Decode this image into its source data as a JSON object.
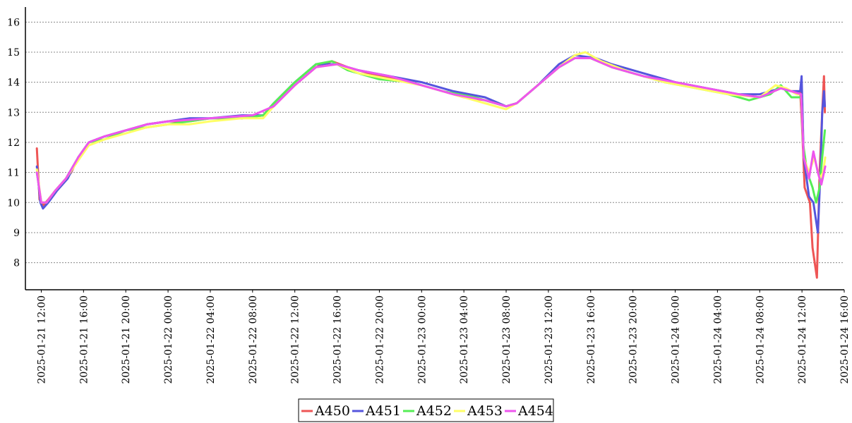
{
  "chart_data": {
    "type": "line",
    "title": "",
    "xlabel": "",
    "ylabel": "",
    "grid": {
      "y": true,
      "x": false,
      "style": "dotted"
    },
    "legend_position": "bottom-center",
    "ylim": [
      7.1,
      16.5
    ],
    "xlim": [
      "2025-01-21 10:30",
      "2025-01-24 16:00"
    ],
    "y_ticks": [
      8,
      9,
      10,
      11,
      12,
      13,
      14,
      15,
      16
    ],
    "x_ticks": [
      "2025-01-21 12:00",
      "2025-01-21 16:00",
      "2025-01-21 20:00",
      "2025-01-22 00:00",
      "2025-01-22 04:00",
      "2025-01-22 08:00",
      "2025-01-22 12:00",
      "2025-01-22 16:00",
      "2025-01-22 20:00",
      "2025-01-23 00:00",
      "2025-01-23 04:00",
      "2025-01-23 08:00",
      "2025-01-23 12:00",
      "2025-01-23 16:00",
      "2025-01-23 20:00",
      "2025-01-24 00:00",
      "2025-01-24 04:00",
      "2025-01-24 08:00",
      "2025-01-24 12:00",
      "2025-01-24 16:00"
    ],
    "series": [
      {
        "name": "A450",
        "color": "#ee5555",
        "points": [
          [
            "2025-01-21 11:35",
            11.8
          ],
          [
            "2025-01-21 11:50",
            10.1
          ],
          [
            "2025-01-21 12:10",
            9.9
          ],
          [
            "2025-01-21 12:40",
            10.1
          ],
          [
            "2025-01-21 13:20",
            10.4
          ],
          [
            "2025-01-21 14:10",
            10.7
          ],
          [
            "2025-01-21 14:50",
            11.0
          ],
          [
            "2025-01-21 15:30",
            11.5
          ],
          [
            "2025-01-21 16:30",
            12.0
          ],
          [
            "2025-01-21 18:00",
            12.2
          ],
          [
            "2025-01-21 20:00",
            12.4
          ],
          [
            "2025-01-21 22:00",
            12.6
          ],
          [
            "2025-01-22 00:00",
            12.7
          ],
          [
            "2025-01-22 02:00",
            12.7
          ],
          [
            "2025-01-22 04:00",
            12.8
          ],
          [
            "2025-01-22 07:00",
            12.8
          ],
          [
            "2025-01-22 09:00",
            12.9
          ],
          [
            "2025-01-22 10:00",
            13.2
          ],
          [
            "2025-01-22 12:00",
            13.9
          ],
          [
            "2025-01-22 14:00",
            14.5
          ],
          [
            "2025-01-22 15:30",
            14.7
          ],
          [
            "2025-01-22 17:00",
            14.5
          ],
          [
            "2025-01-22 19:00",
            14.3
          ],
          [
            "2025-01-22 22:00",
            14.1
          ],
          [
            "2025-01-23 01:00",
            13.8
          ],
          [
            "2025-01-23 04:00",
            13.5
          ],
          [
            "2025-01-23 06:00",
            13.4
          ],
          [
            "2025-01-23 08:00",
            13.2
          ],
          [
            "2025-01-23 09:00",
            13.3
          ],
          [
            "2025-01-23 11:00",
            13.9
          ],
          [
            "2025-01-23 13:00",
            14.5
          ],
          [
            "2025-01-23 14:30",
            14.8
          ],
          [
            "2025-01-23 16:00",
            14.8
          ],
          [
            "2025-01-23 18:00",
            14.5
          ],
          [
            "2025-01-23 21:00",
            14.2
          ],
          [
            "2025-01-24 00:00",
            14.0
          ],
          [
            "2025-01-24 03:00",
            13.8
          ],
          [
            "2025-01-24 06:00",
            13.6
          ],
          [
            "2025-01-24 08:00",
            13.5
          ],
          [
            "2025-01-24 10:00",
            13.8
          ],
          [
            "2025-01-24 11:00",
            13.7
          ],
          [
            "2025-01-24 11:50",
            13.7
          ],
          [
            "2025-01-24 12:00",
            12.6
          ],
          [
            "2025-01-24 12:15",
            10.5
          ],
          [
            "2025-01-24 12:45",
            10.0
          ],
          [
            "2025-01-24 13:00",
            8.5
          ],
          [
            "2025-01-24 13:25",
            7.5
          ],
          [
            "2025-01-24 13:40",
            11.0
          ],
          [
            "2025-01-24 13:55",
            13.0
          ],
          [
            "2025-01-24 14:05",
            14.2
          ],
          [
            "2025-01-24 14:10",
            13.0
          ]
        ]
      },
      {
        "name": "A451",
        "color": "#5555dd",
        "points": [
          [
            "2025-01-21 11:35",
            11.2
          ],
          [
            "2025-01-21 11:55",
            10.0
          ],
          [
            "2025-01-21 12:10",
            9.8
          ],
          [
            "2025-01-21 12:40",
            10.0
          ],
          [
            "2025-01-21 13:30",
            10.4
          ],
          [
            "2025-01-21 14:30",
            10.8
          ],
          [
            "2025-01-21 15:30",
            11.5
          ],
          [
            "2025-01-21 16:30",
            12.0
          ],
          [
            "2025-01-21 18:00",
            12.2
          ],
          [
            "2025-01-21 20:00",
            12.4
          ],
          [
            "2025-01-21 22:00",
            12.6
          ],
          [
            "2025-01-22 00:00",
            12.7
          ],
          [
            "2025-01-22 02:00",
            12.8
          ],
          [
            "2025-01-22 04:00",
            12.8
          ],
          [
            "2025-01-22 07:00",
            12.9
          ],
          [
            "2025-01-22 09:00",
            12.9
          ],
          [
            "2025-01-22 10:00",
            13.3
          ],
          [
            "2025-01-22 12:00",
            14.0
          ],
          [
            "2025-01-22 14:00",
            14.6
          ],
          [
            "2025-01-22 16:00",
            14.6
          ],
          [
            "2025-01-22 18:00",
            14.4
          ],
          [
            "2025-01-22 21:00",
            14.2
          ],
          [
            "2025-01-23 00:00",
            14.0
          ],
          [
            "2025-01-23 03:00",
            13.7
          ],
          [
            "2025-01-23 06:00",
            13.5
          ],
          [
            "2025-01-23 08:00",
            13.2
          ],
          [
            "2025-01-23 09:00",
            13.3
          ],
          [
            "2025-01-23 11:00",
            13.9
          ],
          [
            "2025-01-23 13:00",
            14.6
          ],
          [
            "2025-01-23 14:30",
            14.9
          ],
          [
            "2025-01-23 16:30",
            14.8
          ],
          [
            "2025-01-23 18:00",
            14.6
          ],
          [
            "2025-01-23 21:00",
            14.3
          ],
          [
            "2025-01-24 00:00",
            14.0
          ],
          [
            "2025-01-24 03:00",
            13.8
          ],
          [
            "2025-01-24 06:00",
            13.6
          ],
          [
            "2025-01-24 08:00",
            13.6
          ],
          [
            "2025-01-24 10:00",
            13.8
          ],
          [
            "2025-01-24 11:00",
            13.7
          ],
          [
            "2025-01-24 11:50",
            13.7
          ],
          [
            "2025-01-24 11:58",
            14.2
          ],
          [
            "2025-01-24 12:10",
            11.5
          ],
          [
            "2025-01-24 12:40",
            10.2
          ],
          [
            "2025-01-24 13:05",
            10.0
          ],
          [
            "2025-01-24 13:30",
            9.0
          ],
          [
            "2025-01-24 13:45",
            11.0
          ],
          [
            "2025-01-24 13:55",
            13.0
          ],
          [
            "2025-01-24 14:05",
            13.7
          ],
          [
            "2025-01-24 14:10",
            13.2
          ]
        ]
      },
      {
        "name": "A452",
        "color": "#55ee55",
        "points": [
          [
            "2025-01-21 11:35",
            11.0
          ],
          [
            "2025-01-21 12:00",
            10.0
          ],
          [
            "2025-01-21 12:30",
            10.0
          ],
          [
            "2025-01-21 13:20",
            10.4
          ],
          [
            "2025-01-21 14:20",
            10.8
          ],
          [
            "2025-01-21 15:30",
            11.5
          ],
          [
            "2025-01-21 16:30",
            12.0
          ],
          [
            "2025-01-21 18:00",
            12.1
          ],
          [
            "2025-01-21 20:00",
            12.4
          ],
          [
            "2025-01-21 22:00",
            12.5
          ],
          [
            "2025-01-22 00:00",
            12.6
          ],
          [
            "2025-01-22 02:00",
            12.7
          ],
          [
            "2025-01-22 04:00",
            12.8
          ],
          [
            "2025-01-22 07:00",
            12.8
          ],
          [
            "2025-01-22 09:00",
            12.9
          ],
          [
            "2025-01-22 10:00",
            13.3
          ],
          [
            "2025-01-22 12:00",
            14.0
          ],
          [
            "2025-01-22 14:00",
            14.6
          ],
          [
            "2025-01-22 15:30",
            14.7
          ],
          [
            "2025-01-22 17:00",
            14.4
          ],
          [
            "2025-01-22 20:00",
            14.1
          ],
          [
            "2025-01-22 23:00",
            14.0
          ],
          [
            "2025-01-23 02:00",
            13.7
          ],
          [
            "2025-01-23 05:00",
            13.5
          ],
          [
            "2025-01-23 07:00",
            13.3
          ],
          [
            "2025-01-23 08:00",
            13.2
          ],
          [
            "2025-01-23 09:00",
            13.3
          ],
          [
            "2025-01-23 11:00",
            13.9
          ],
          [
            "2025-01-23 13:00",
            14.5
          ],
          [
            "2025-01-23 14:30",
            14.8
          ],
          [
            "2025-01-23 16:00",
            14.8
          ],
          [
            "2025-01-23 18:00",
            14.5
          ],
          [
            "2025-01-23 20:00",
            14.3
          ],
          [
            "2025-01-23 23:00",
            14.0
          ],
          [
            "2025-01-24 02:00",
            13.8
          ],
          [
            "2025-01-24 05:00",
            13.6
          ],
          [
            "2025-01-24 07:00",
            13.4
          ],
          [
            "2025-01-24 09:00",
            13.6
          ],
          [
            "2025-01-24 10:00",
            13.9
          ],
          [
            "2025-01-24 11:00",
            13.5
          ],
          [
            "2025-01-24 11:55",
            13.5
          ],
          [
            "2025-01-24 12:05",
            12.0
          ],
          [
            "2025-01-24 12:30",
            11.0
          ],
          [
            "2025-01-24 13:00",
            10.5
          ],
          [
            "2025-01-24 13:20",
            10.0
          ],
          [
            "2025-01-24 13:40",
            10.5
          ],
          [
            "2025-01-24 13:55",
            11.5
          ],
          [
            "2025-01-24 14:10",
            12.4
          ]
        ]
      },
      {
        "name": "A453",
        "color": "#ffff66",
        "points": [
          [
            "2025-01-21 11:35",
            11.1
          ],
          [
            "2025-01-21 12:00",
            10.0
          ],
          [
            "2025-01-21 12:30",
            10.0
          ],
          [
            "2025-01-21 13:20",
            10.4
          ],
          [
            "2025-01-21 14:20",
            10.8
          ],
          [
            "2025-01-21 15:30",
            11.4
          ],
          [
            "2025-01-21 16:30",
            11.9
          ],
          [
            "2025-01-21 18:00",
            12.1
          ],
          [
            "2025-01-21 20:00",
            12.3
          ],
          [
            "2025-01-21 22:00",
            12.5
          ],
          [
            "2025-01-22 00:00",
            12.6
          ],
          [
            "2025-01-22 02:00",
            12.6
          ],
          [
            "2025-01-22 04:00",
            12.7
          ],
          [
            "2025-01-22 07:00",
            12.8
          ],
          [
            "2025-01-22 09:00",
            12.8
          ],
          [
            "2025-01-22 10:00",
            13.2
          ],
          [
            "2025-01-22 12:00",
            13.9
          ],
          [
            "2025-01-22 14:00",
            14.5
          ],
          [
            "2025-01-22 16:00",
            14.6
          ],
          [
            "2025-01-22 18:00",
            14.3
          ],
          [
            "2025-01-22 21:00",
            14.1
          ],
          [
            "2025-01-23 00:00",
            13.9
          ],
          [
            "2025-01-23 03:00",
            13.6
          ],
          [
            "2025-01-23 06:00",
            13.3
          ],
          [
            "2025-01-23 08:00",
            13.1
          ],
          [
            "2025-01-23 09:00",
            13.3
          ],
          [
            "2025-01-23 11:00",
            13.9
          ],
          [
            "2025-01-23 13:00",
            14.5
          ],
          [
            "2025-01-23 14:30",
            14.9
          ],
          [
            "2025-01-23 15:30",
            15.0
          ],
          [
            "2025-01-23 17:00",
            14.7
          ],
          [
            "2025-01-23 20:00",
            14.3
          ],
          [
            "2025-01-23 23:00",
            14.0
          ],
          [
            "2025-01-24 02:00",
            13.8
          ],
          [
            "2025-01-24 05:00",
            13.6
          ],
          [
            "2025-01-24 08:00",
            13.5
          ],
          [
            "2025-01-24 09:30",
            13.9
          ],
          [
            "2025-01-24 10:30",
            13.8
          ],
          [
            "2025-01-24 11:30",
            13.6
          ],
          [
            "2025-01-24 11:55",
            13.6
          ],
          [
            "2025-01-24 12:10",
            11.5
          ],
          [
            "2025-01-24 12:40",
            11.0
          ],
          [
            "2025-01-24 13:10",
            11.5
          ],
          [
            "2025-01-24 13:40",
            10.8
          ],
          [
            "2025-01-24 14:00",
            11.0
          ],
          [
            "2025-01-24 14:12",
            11.5
          ]
        ]
      },
      {
        "name": "A454",
        "color": "#ee55ee",
        "points": [
          [
            "2025-01-21 11:35",
            11.0
          ],
          [
            "2025-01-21 12:00",
            10.0
          ],
          [
            "2025-01-21 12:30",
            10.0
          ],
          [
            "2025-01-21 13:20",
            10.4
          ],
          [
            "2025-01-21 14:20",
            10.8
          ],
          [
            "2025-01-21 15:30",
            11.5
          ],
          [
            "2025-01-21 16:30",
            12.0
          ],
          [
            "2025-01-21 18:00",
            12.2
          ],
          [
            "2025-01-21 20:00",
            12.4
          ],
          [
            "2025-01-21 22:00",
            12.6
          ],
          [
            "2025-01-22 00:00",
            12.7
          ],
          [
            "2025-01-22 04:00",
            12.8
          ],
          [
            "2025-01-22 08:00",
            12.9
          ],
          [
            "2025-01-22 10:00",
            13.2
          ],
          [
            "2025-01-22 12:00",
            13.9
          ],
          [
            "2025-01-22 14:00",
            14.5
          ],
          [
            "2025-01-22 16:00",
            14.6
          ],
          [
            "2025-01-22 18:00",
            14.4
          ],
          [
            "2025-01-22 21:00",
            14.2
          ],
          [
            "2025-01-23 00:00",
            13.9
          ],
          [
            "2025-01-23 03:00",
            13.6
          ],
          [
            "2025-01-23 06:00",
            13.4
          ],
          [
            "2025-01-23 08:00",
            13.2
          ],
          [
            "2025-01-23 09:00",
            13.3
          ],
          [
            "2025-01-23 11:00",
            13.9
          ],
          [
            "2025-01-23 13:00",
            14.5
          ],
          [
            "2025-01-23 14:30",
            14.8
          ],
          [
            "2025-01-23 16:00",
            14.8
          ],
          [
            "2025-01-23 18:00",
            14.5
          ],
          [
            "2025-01-23 21:00",
            14.2
          ],
          [
            "2025-01-24 00:00",
            14.0
          ],
          [
            "2025-01-24 03:00",
            13.8
          ],
          [
            "2025-01-24 06:00",
            13.6
          ],
          [
            "2025-01-24 08:00",
            13.5
          ],
          [
            "2025-01-24 10:00",
            13.8
          ],
          [
            "2025-01-24 11:00",
            13.7
          ],
          [
            "2025-01-24 11:55",
            13.6
          ],
          [
            "2025-01-24 12:10",
            11.5
          ],
          [
            "2025-01-24 12:40",
            10.8
          ],
          [
            "2025-01-24 13:05",
            11.7
          ],
          [
            "2025-01-24 13:30",
            11.0
          ],
          [
            "2025-01-24 13:50",
            10.6
          ],
          [
            "2025-01-24 14:05",
            11.0
          ],
          [
            "2025-01-24 14:12",
            11.2
          ]
        ]
      }
    ]
  }
}
